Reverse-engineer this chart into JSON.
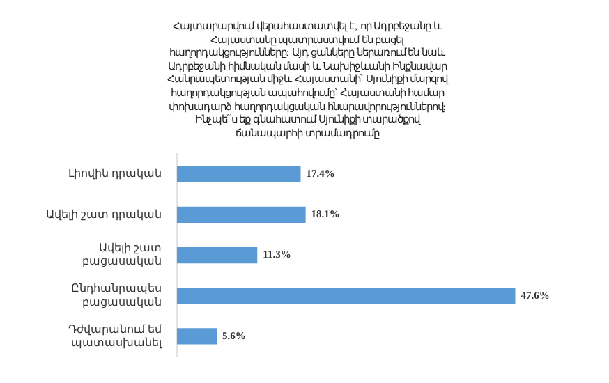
{
  "chart_data": {
    "type": "bar",
    "orientation": "horizontal",
    "relative": false,
    "title": "Հայտարարվում վերահաստատվել է, որ Ադրբեջանը և Հայաստանը պատրաստվում են բացել հաղորդակցությունները: Այդ ցանկերը ներառում են նաև Ադրբեջանի հիմնական մասի և Նախիջևանի Ինքնավար Հանրապետության միջև Հայաստանի՝ Սյունիքի մարզով հաղորդակցության ապահովումը՝ Հայաստանի համար փոխադարձ հաղորդակցական հնարավորություններով:\nԻնչպե՞ս եք գնահատում Սյունիքի տարածքով ճանապարհի տրամադրումը",
    "categories": [
      "Լիովին դրական",
      "Ավելի շատ դրական",
      "Ավելի շատ բացասական",
      "Ընդհանրապես բացասական",
      "Դժվարանում եմ պատասխանել"
    ],
    "values": [
      17.4,
      18.1,
      11.3,
      47.6,
      5.6
    ],
    "value_labels": [
      "17.4%",
      "18.1%",
      "11.3%",
      "47.6%",
      "5.6%"
    ],
    "color": "#5b9bd5",
    "grid": false,
    "legend": false
  }
}
